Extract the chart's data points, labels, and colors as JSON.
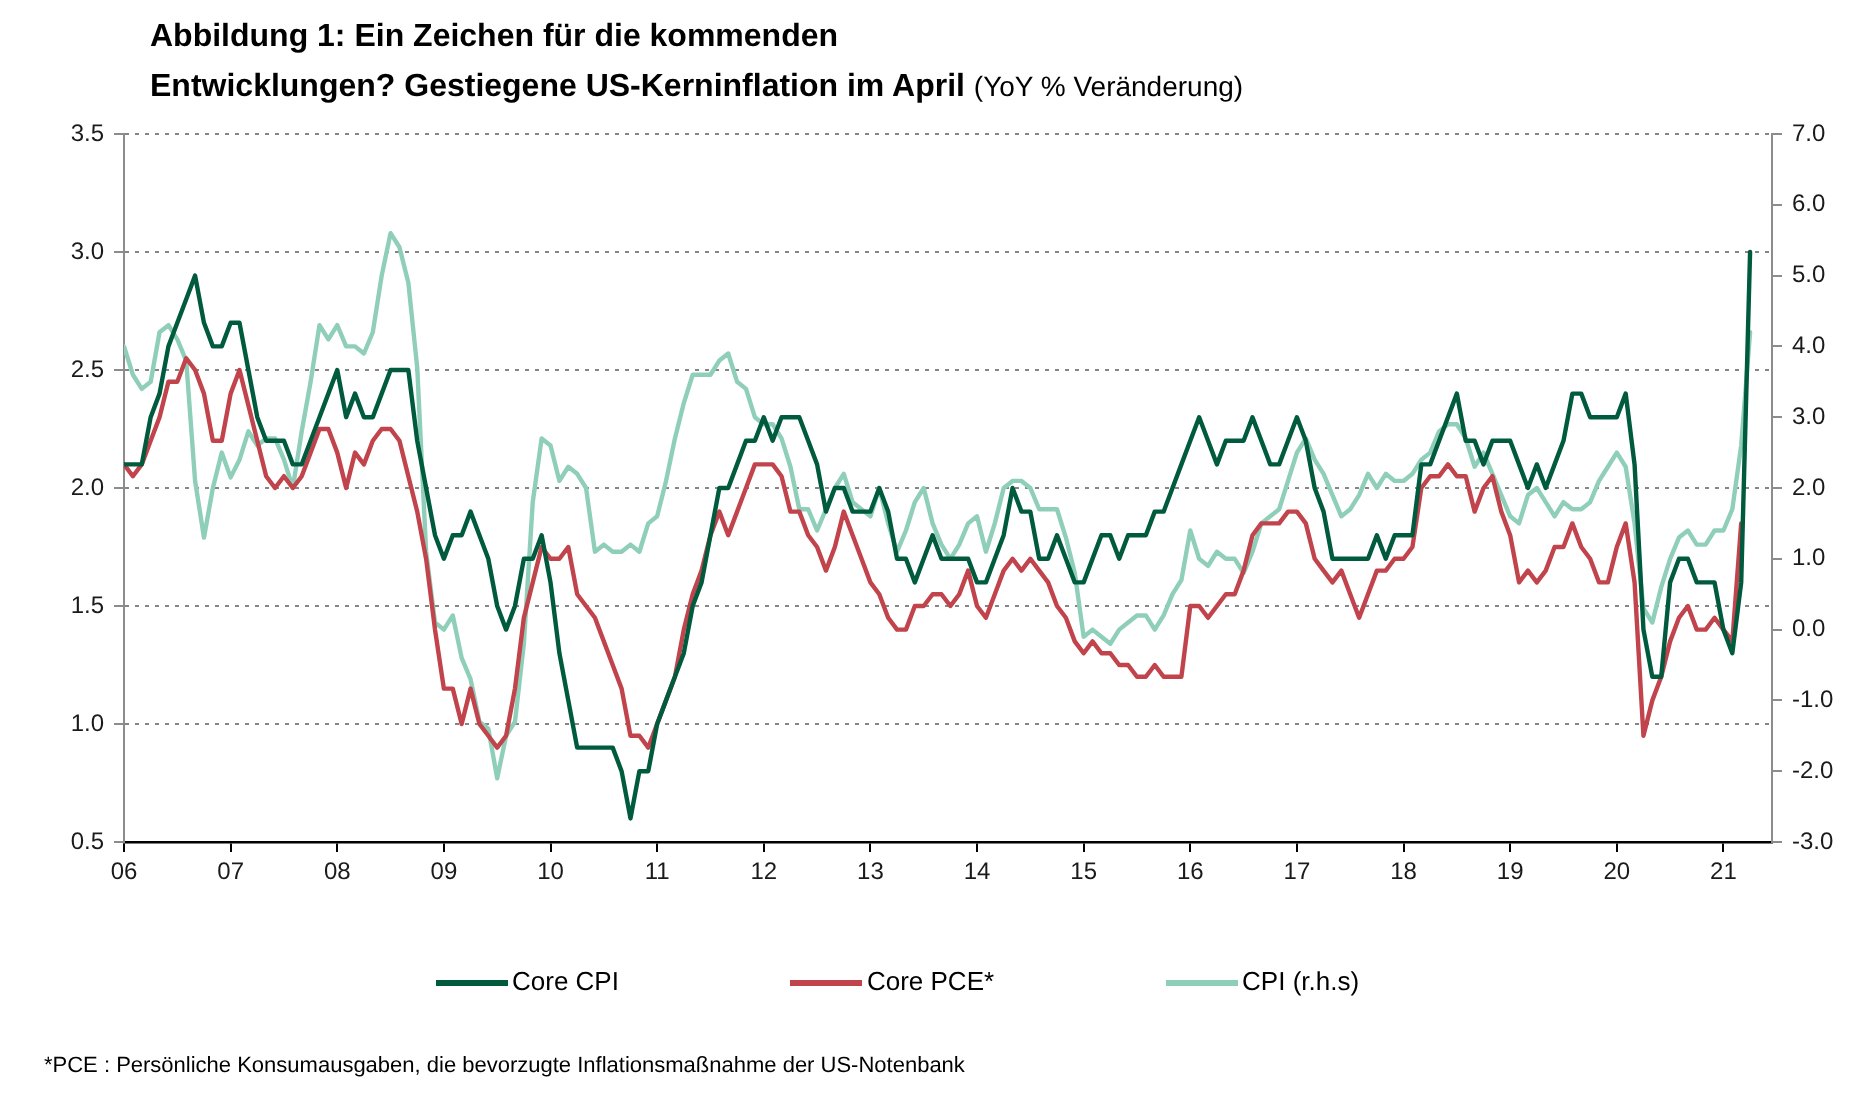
{
  "chart_data": {
    "type": "line",
    "title": "Abbildung 1: Ein Zeichen für die kommenden Entwicklungen? Gestiegene US-Kerninflation im April",
    "subtitle": "(YoY % Veränderung)",
    "x": [
      "2006-01",
      "2006-02",
      "2006-03",
      "2006-04",
      "2006-05",
      "2006-06",
      "2006-07",
      "2006-08",
      "2006-09",
      "2006-10",
      "2006-11",
      "2006-12",
      "2007-01",
      "2007-02",
      "2007-03",
      "2007-04",
      "2007-05",
      "2007-06",
      "2007-07",
      "2007-08",
      "2007-09",
      "2007-10",
      "2007-11",
      "2007-12",
      "2008-01",
      "2008-02",
      "2008-03",
      "2008-04",
      "2008-05",
      "2008-06",
      "2008-07",
      "2008-08",
      "2008-09",
      "2008-10",
      "2008-11",
      "2008-12",
      "2009-01",
      "2009-02",
      "2009-03",
      "2009-04",
      "2009-05",
      "2009-06",
      "2009-07",
      "2009-08",
      "2009-09",
      "2009-10",
      "2009-11",
      "2009-12",
      "2010-01",
      "2010-02",
      "2010-03",
      "2010-04",
      "2010-05",
      "2010-06",
      "2010-07",
      "2010-08",
      "2010-09",
      "2010-10",
      "2010-11",
      "2010-12",
      "2011-01",
      "2011-02",
      "2011-03",
      "2011-04",
      "2011-05",
      "2011-06",
      "2011-07",
      "2011-08",
      "2011-09",
      "2011-10",
      "2011-11",
      "2011-12",
      "2012-01",
      "2012-02",
      "2012-03",
      "2012-04",
      "2012-05",
      "2012-06",
      "2012-07",
      "2012-08",
      "2012-09",
      "2012-10",
      "2012-11",
      "2012-12",
      "2013-01",
      "2013-02",
      "2013-03",
      "2013-04",
      "2013-05",
      "2013-06",
      "2013-07",
      "2013-08",
      "2013-09",
      "2013-10",
      "2013-11",
      "2013-12",
      "2014-01",
      "2014-02",
      "2014-03",
      "2014-04",
      "2014-05",
      "2014-06",
      "2014-07",
      "2014-08",
      "2014-09",
      "2014-10",
      "2014-11",
      "2014-12",
      "2015-01",
      "2015-02",
      "2015-03",
      "2015-04",
      "2015-05",
      "2015-06",
      "2015-07",
      "2015-08",
      "2015-09",
      "2015-10",
      "2015-11",
      "2015-12",
      "2016-01",
      "2016-02",
      "2016-03",
      "2016-04",
      "2016-05",
      "2016-06",
      "2016-07",
      "2016-08",
      "2016-09",
      "2016-10",
      "2016-11",
      "2016-12",
      "2017-01",
      "2017-02",
      "2017-03",
      "2017-04",
      "2017-05",
      "2017-06",
      "2017-07",
      "2017-08",
      "2017-09",
      "2017-10",
      "2017-11",
      "2017-12",
      "2018-01",
      "2018-02",
      "2018-03",
      "2018-04",
      "2018-05",
      "2018-06",
      "2018-07",
      "2018-08",
      "2018-09",
      "2018-10",
      "2018-11",
      "2018-12",
      "2019-01",
      "2019-02",
      "2019-03",
      "2019-04",
      "2019-05",
      "2019-06",
      "2019-07",
      "2019-08",
      "2019-09",
      "2019-10",
      "2019-11",
      "2019-12",
      "2020-01",
      "2020-02",
      "2020-03",
      "2020-04",
      "2020-05",
      "2020-06",
      "2020-07",
      "2020-08",
      "2020-09",
      "2020-10",
      "2020-11",
      "2020-12",
      "2021-01",
      "2021-02",
      "2021-03",
      "2021-04"
    ],
    "series": [
      {
        "name": "Core CPI",
        "color": "#005a3e",
        "values": [
          2.1,
          2.1,
          2.1,
          2.3,
          2.4,
          2.6,
          2.7,
          2.8,
          2.9,
          2.7,
          2.6,
          2.6,
          2.7,
          2.7,
          2.5,
          2.3,
          2.2,
          2.2,
          2.2,
          2.1,
          2.1,
          2.2,
          2.3,
          2.4,
          2.5,
          2.3,
          2.4,
          2.3,
          2.3,
          2.4,
          2.5,
          2.5,
          2.5,
          2.2,
          2.0,
          1.8,
          1.7,
          1.8,
          1.8,
          1.9,
          1.8,
          1.7,
          1.5,
          1.4,
          1.5,
          1.7,
          1.7,
          1.8,
          1.6,
          1.3,
          1.1,
          0.9,
          0.9,
          0.9,
          0.9,
          0.9,
          0.8,
          0.6,
          0.8,
          0.8,
          1.0,
          1.1,
          1.2,
          1.3,
          1.5,
          1.6,
          1.8,
          2.0,
          2.0,
          2.1,
          2.2,
          2.2,
          2.3,
          2.2,
          2.3,
          2.3,
          2.3,
          2.2,
          2.1,
          1.9,
          2.0,
          2.0,
          1.9,
          1.9,
          1.9,
          2.0,
          1.9,
          1.7,
          1.7,
          1.6,
          1.7,
          1.8,
          1.7,
          1.7,
          1.7,
          1.7,
          1.6,
          1.6,
          1.7,
          1.8,
          2.0,
          1.9,
          1.9,
          1.7,
          1.7,
          1.8,
          1.7,
          1.6,
          1.6,
          1.7,
          1.8,
          1.8,
          1.7,
          1.8,
          1.8,
          1.8,
          1.9,
          1.9,
          2.0,
          2.1,
          2.2,
          2.3,
          2.2,
          2.1,
          2.2,
          2.2,
          2.2,
          2.3,
          2.2,
          2.1,
          2.1,
          2.2,
          2.3,
          2.2,
          2.0,
          1.9,
          1.7,
          1.7,
          1.7,
          1.7,
          1.7,
          1.8,
          1.7,
          1.8,
          1.8,
          1.8,
          2.1,
          2.1,
          2.2,
          2.3,
          2.4,
          2.2,
          2.2,
          2.1,
          2.2,
          2.2,
          2.2,
          2.1,
          2.0,
          2.1,
          2.0,
          2.1,
          2.2,
          2.4,
          2.4,
          2.3,
          2.3,
          2.3,
          2.3,
          2.4,
          2.1,
          1.4,
          1.2,
          1.2,
          1.6,
          1.7,
          1.7,
          1.6,
          1.6,
          1.6,
          1.4,
          1.3,
          1.6,
          3.0
        ]
      },
      {
        "name": "Core PCE*",
        "color": "#c1434b",
        "values": [
          2.1,
          2.05,
          2.1,
          2.2,
          2.3,
          2.45,
          2.45,
          2.55,
          2.5,
          2.4,
          2.2,
          2.2,
          2.4,
          2.5,
          2.35,
          2.2,
          2.05,
          2.0,
          2.05,
          2.0,
          2.05,
          2.15,
          2.25,
          2.25,
          2.15,
          2.0,
          2.15,
          2.1,
          2.2,
          2.25,
          2.25,
          2.2,
          2.05,
          1.9,
          1.7,
          1.4,
          1.15,
          1.15,
          1.0,
          1.15,
          1.0,
          0.95,
          0.9,
          0.95,
          1.15,
          1.45,
          1.6,
          1.75,
          1.7,
          1.7,
          1.75,
          1.55,
          1.5,
          1.45,
          1.35,
          1.25,
          1.15,
          0.95,
          0.95,
          0.9,
          1.0,
          1.1,
          1.2,
          1.4,
          1.55,
          1.65,
          1.8,
          1.9,
          1.8,
          1.9,
          2.0,
          2.1,
          2.1,
          2.1,
          2.05,
          1.9,
          1.9,
          1.8,
          1.75,
          1.65,
          1.75,
          1.9,
          1.8,
          1.7,
          1.6,
          1.55,
          1.45,
          1.4,
          1.4,
          1.5,
          1.5,
          1.55,
          1.55,
          1.5,
          1.55,
          1.65,
          1.5,
          1.45,
          1.55,
          1.65,
          1.7,
          1.65,
          1.7,
          1.65,
          1.6,
          1.5,
          1.45,
          1.35,
          1.3,
          1.35,
          1.3,
          1.3,
          1.25,
          1.25,
          1.2,
          1.2,
          1.25,
          1.2,
          1.2,
          1.2,
          1.5,
          1.5,
          1.45,
          1.5,
          1.55,
          1.55,
          1.65,
          1.8,
          1.85,
          1.85,
          1.85,
          1.9,
          1.9,
          1.85,
          1.7,
          1.65,
          1.6,
          1.65,
          1.55,
          1.45,
          1.55,
          1.65,
          1.65,
          1.7,
          1.7,
          1.75,
          2.0,
          2.05,
          2.05,
          2.1,
          2.05,
          2.05,
          1.9,
          2.0,
          2.05,
          1.9,
          1.8,
          1.6,
          1.65,
          1.6,
          1.65,
          1.75,
          1.75,
          1.85,
          1.75,
          1.7,
          1.6,
          1.6,
          1.75,
          1.85,
          1.6,
          0.95,
          1.1,
          1.2,
          1.35,
          1.45,
          1.5,
          1.4,
          1.4,
          1.45,
          1.4,
          1.35,
          1.85,
          null
        ]
      },
      {
        "name": "CPI (r.h.s)",
        "color": "#8fcfb9",
        "axis": "y2",
        "values": [
          4.0,
          3.6,
          3.4,
          3.5,
          4.2,
          4.3,
          4.1,
          3.8,
          2.1,
          1.3,
          2.0,
          2.5,
          2.15,
          2.4,
          2.8,
          2.6,
          2.7,
          2.7,
          2.4,
          2.0,
          2.8,
          3.5,
          4.3,
          4.1,
          4.3,
          4.0,
          4.0,
          3.9,
          4.2,
          5.0,
          5.6,
          5.4,
          4.9,
          3.7,
          1.1,
          0.1,
          0.0,
          0.2,
          -0.4,
          -0.7,
          -1.3,
          -1.4,
          -2.1,
          -1.5,
          -1.3,
          -0.2,
          1.8,
          2.7,
          2.6,
          2.1,
          2.3,
          2.2,
          2.0,
          1.1,
          1.2,
          1.1,
          1.1,
          1.2,
          1.1,
          1.5,
          1.6,
          2.1,
          2.7,
          3.2,
          3.6,
          3.6,
          3.6,
          3.8,
          3.9,
          3.5,
          3.4,
          3.0,
          2.9,
          2.9,
          2.7,
          2.3,
          1.7,
          1.7,
          1.4,
          1.7,
          2.0,
          2.2,
          1.8,
          1.7,
          1.6,
          2.0,
          1.5,
          1.1,
          1.4,
          1.8,
          2.0,
          1.5,
          1.2,
          1.0,
          1.2,
          1.5,
          1.6,
          1.1,
          1.5,
          2.0,
          2.1,
          2.1,
          2.0,
          1.7,
          1.7,
          1.7,
          1.3,
          0.8,
          -0.1,
          0.0,
          -0.1,
          -0.2,
          0.0,
          0.1,
          0.2,
          0.2,
          0.0,
          0.2,
          0.5,
          0.7,
          1.4,
          1.0,
          0.9,
          1.1,
          1.0,
          1.0,
          0.8,
          1.1,
          1.5,
          1.6,
          1.7,
          2.1,
          2.5,
          2.7,
          2.4,
          2.2,
          1.9,
          1.6,
          1.7,
          1.9,
          2.2,
          2.0,
          2.2,
          2.1,
          2.1,
          2.2,
          2.4,
          2.5,
          2.8,
          2.9,
          2.9,
          2.7,
          2.3,
          2.5,
          2.2,
          1.9,
          1.6,
          1.5,
          1.9,
          2.0,
          1.8,
          1.6,
          1.8,
          1.7,
          1.7,
          1.8,
          2.1,
          2.3,
          2.5,
          2.3,
          1.5,
          0.3,
          0.1,
          0.6,
          1.0,
          1.3,
          1.4,
          1.2,
          1.2,
          1.4,
          1.4,
          1.7,
          2.6,
          4.2
        ]
      }
    ],
    "xlim": [
      "2006-01",
      "2021-06-15"
    ],
    "xticks": [
      {
        "value": "2006",
        "label": "06"
      },
      {
        "value": "2007",
        "label": "07"
      },
      {
        "value": "2008",
        "label": "08"
      },
      {
        "value": "2009",
        "label": "09"
      },
      {
        "value": "2010",
        "label": "10"
      },
      {
        "value": "2011",
        "label": "11"
      },
      {
        "value": "2012",
        "label": "12"
      },
      {
        "value": "2013",
        "label": "13"
      },
      {
        "value": "2014",
        "label": "14"
      },
      {
        "value": "2015",
        "label": "15"
      },
      {
        "value": "2016",
        "label": "16"
      },
      {
        "value": "2017",
        "label": "17"
      },
      {
        "value": "2018",
        "label": "18"
      },
      {
        "value": "2019",
        "label": "19"
      },
      {
        "value": "2020",
        "label": "20"
      },
      {
        "value": "2021",
        "label": "21"
      }
    ],
    "ylim": [
      0.5,
      3.5
    ],
    "yticks": [
      0.5,
      {
        "value": 1,
        "label": "1.0"
      },
      1.5,
      {
        "value": 2,
        "label": "2.0"
      },
      2.5,
      {
        "value": 3,
        "label": "3.0"
      },
      3.5
    ],
    "y2lim": [
      -3,
      7
    ],
    "y2ticks": [
      {
        "value": -3,
        "label": "-3.0"
      },
      {
        "value": -2,
        "label": "-2.0"
      },
      {
        "value": -1,
        "label": "-1.0"
      },
      {
        "value": 0,
        "label": "0.0"
      },
      {
        "value": 1,
        "label": "1.0"
      },
      {
        "value": 2,
        "label": "2.0"
      },
      {
        "value": 3,
        "label": "3.0"
      },
      {
        "value": 4,
        "label": "4.0"
      },
      {
        "value": 5,
        "label": "5.0"
      },
      {
        "value": 6,
        "label": "6.0"
      },
      {
        "value": 7,
        "label": "7.0"
      }
    ],
    "grid": "y",
    "legend": "bottom",
    "annotations": [
      "*PCE : Persönliche Konsumausgaben, die bevorzugte Inflationsmaßnahme der US-Notenbank"
    ]
  }
}
